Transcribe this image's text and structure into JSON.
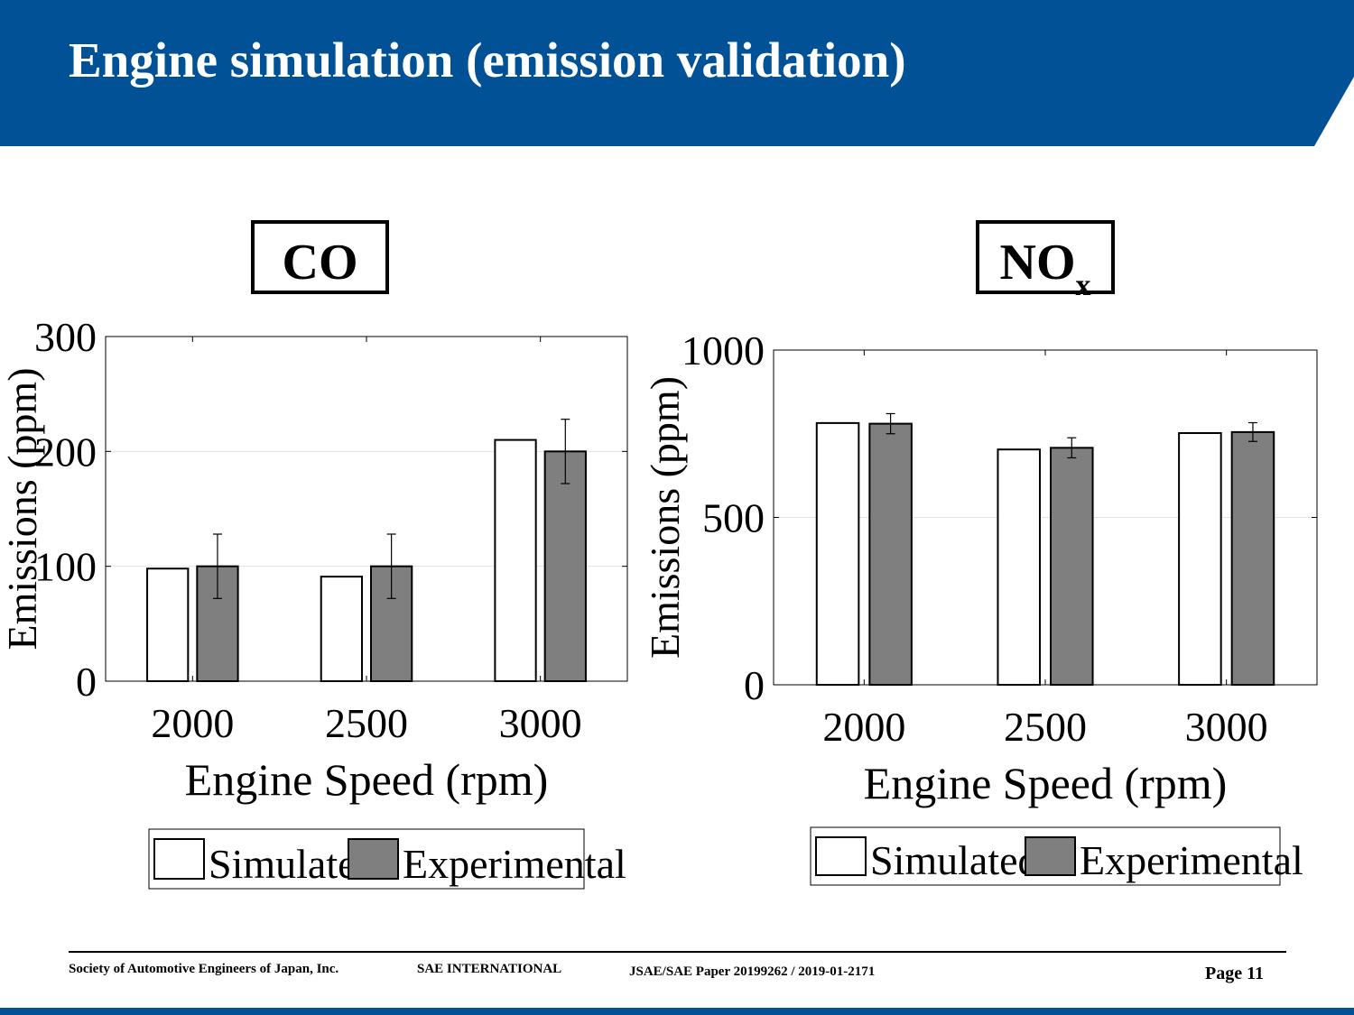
{
  "slide": {
    "title": "Engine simulation (emission validation)",
    "colors": {
      "header": "#005196",
      "bottom_bar": "#005196"
    }
  },
  "labels": {
    "co": "CO",
    "nox_main": "NO",
    "nox_sub": "x"
  },
  "footer": {
    "org": "Society of Automotive Engineers of Japan, Inc.",
    "sae": "SAE INTERNATIONAL",
    "paper": "JSAE/SAE  Paper 20199262 / 2019-01-2171",
    "page": "Page 11"
  },
  "chart_data": [
    {
      "type": "bar",
      "categories": [
        "2000",
        "2500",
        "3000"
      ],
      "series": [
        {
          "name": "Simulated",
          "values": [
            98,
            91,
            210
          ],
          "color": "#ffffff"
        },
        {
          "name": "Experimental",
          "values": [
            100,
            100,
            200
          ],
          "errors": [
            28,
            28,
            28
          ],
          "color": "#7f7f7f"
        }
      ],
      "xlabel": "Engine Speed (rpm)",
      "ylabel": "Emissions (ppm)",
      "ylim": [
        0,
        300
      ],
      "yticks": [
        0,
        100,
        200,
        300
      ],
      "grid": true,
      "legend": "bottom"
    },
    {
      "type": "bar",
      "categories": [
        "2000",
        "2500",
        "3000"
      ],
      "series": [
        {
          "name": "Simulated",
          "values": [
            782,
            703,
            752
          ],
          "color": "#ffffff"
        },
        {
          "name": "Experimental",
          "values": [
            780,
            708,
            755
          ],
          "errors": [
            30,
            30,
            28
          ],
          "color": "#7f7f7f"
        }
      ],
      "xlabel": "Engine Speed (rpm)",
      "ylabel": "Emissions (ppm)",
      "ylim": [
        0,
        1000
      ],
      "yticks": [
        0,
        500,
        1000
      ],
      "grid": true,
      "legend": "bottom"
    }
  ]
}
